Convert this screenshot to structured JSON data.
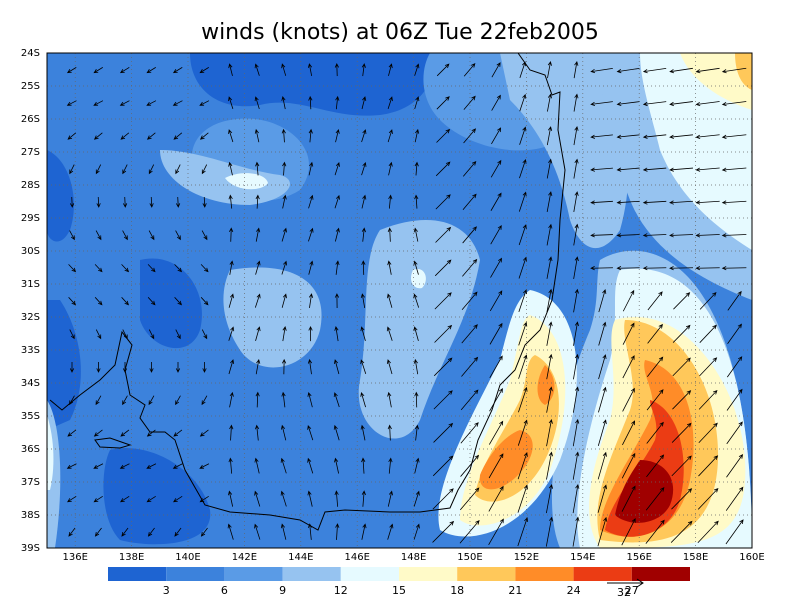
{
  "map": {
    "title": "winds (knots) at 06Z Tue 22feb2005",
    "lat_labels": [
      "24S",
      "25S",
      "26S",
      "27S",
      "28S",
      "29S",
      "30S",
      "31S",
      "32S",
      "33S",
      "34S",
      "35S",
      "36S",
      "37S",
      "38S",
      "39S"
    ],
    "lon_labels": [
      "136E",
      "138E",
      "140E",
      "142E",
      "144E",
      "146E",
      "148E",
      "150E",
      "152E",
      "154E",
      "156E",
      "158E",
      "160E"
    ],
    "colorbar": {
      "labels": [
        "3",
        "6",
        "9",
        "12",
        "15",
        "18",
        "21",
        "24",
        "27"
      ],
      "colors": [
        "#1e64d2",
        "#3c82dc",
        "#5a9be6",
        "#96c3f0",
        "#e6faff",
        "#fffac8",
        "#ffc85a",
        "#ff8c28",
        "#eb3c14",
        "#a00000"
      ]
    },
    "vector_reference": "32"
  }
}
